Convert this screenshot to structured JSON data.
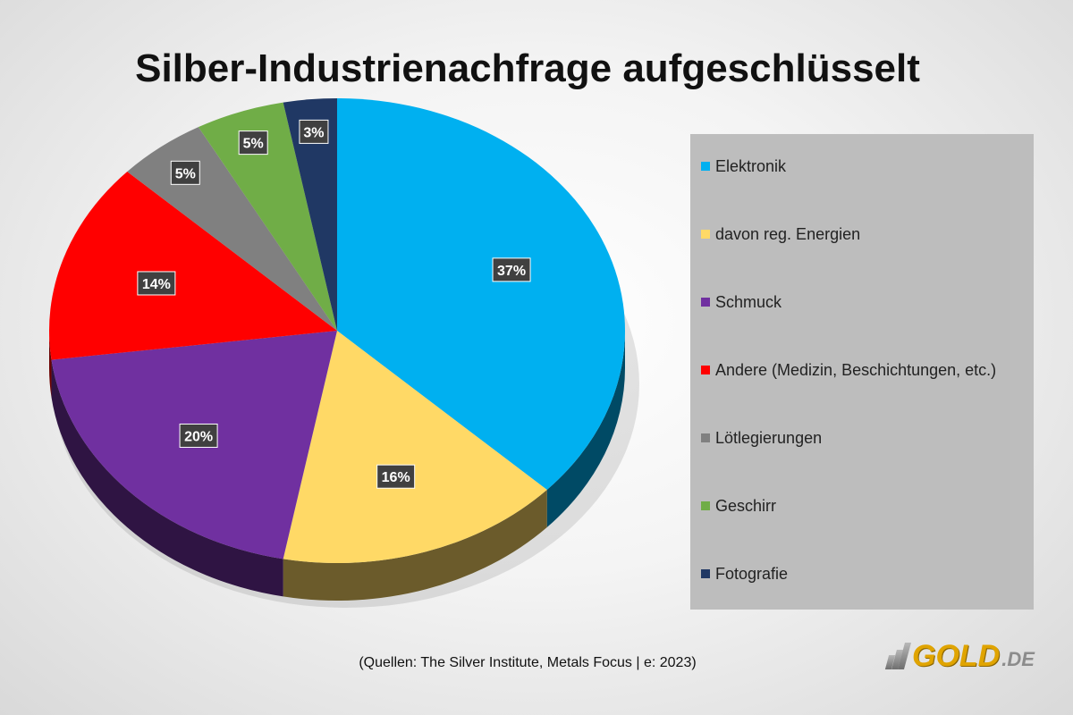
{
  "chart_data": {
    "type": "pie",
    "title": "Silber-Industrienachfrage aufgeschlüsselt",
    "slices": [
      {
        "label": "Elektronik",
        "value": 37,
        "display": "37%",
        "color": "#00B0F0"
      },
      {
        "label": "davon reg. Energien",
        "value": 16,
        "display": "16%",
        "color": "#FFD966"
      },
      {
        "label": "Schmuck",
        "value": 20,
        "display": "20%",
        "color": "#7030A0"
      },
      {
        "label": "Andere (Medizin, Beschichtungen, etc.)",
        "value": 14,
        "display": "14%",
        "color": "#FF0000"
      },
      {
        "label": "Lötlegierungen",
        "value": 5,
        "display": "5%",
        "color": "#808080"
      },
      {
        "label": "Geschirr",
        "value": 5,
        "display": "5%",
        "color": "#70AD47"
      },
      {
        "label": "Fotografie",
        "value": 3,
        "display": "3%",
        "color": "#203864"
      }
    ],
    "legend_position": "right"
  },
  "source_note": "(Quellen: The Silver Institute, Metals Focus | e: 2023)",
  "logo": {
    "main": "GOLD",
    "suffix": ".DE"
  }
}
